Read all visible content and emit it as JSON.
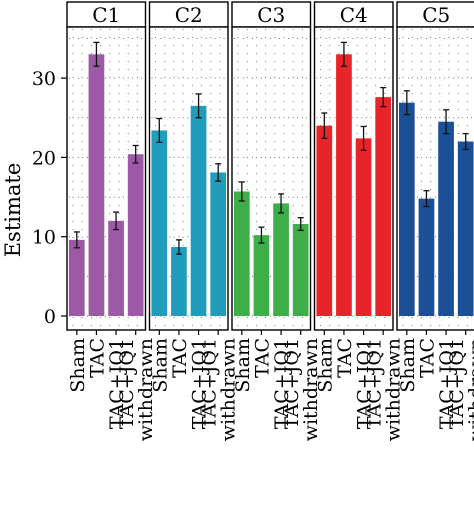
{
  "chart_data": {
    "type": "bar",
    "ylabel": "Estimate",
    "xlabel": "",
    "ylim": [
      0,
      37
    ],
    "yticks": [
      0,
      10,
      20,
      30
    ],
    "categories": [
      "Sham",
      "TAC",
      "TAC+JQ1",
      "TAC+JQ1 withdrawn"
    ],
    "tick_lines": [
      [
        "Sham"
      ],
      [
        "TAC"
      ],
      [
        "TAC+JQ1"
      ],
      [
        "TAC+JQ1",
        "withdrawn"
      ]
    ],
    "grid": true,
    "facets": [
      {
        "name": "C1",
        "color": "#9b59a6",
        "values": [
          9.6,
          33.0,
          12.0,
          20.4
        ],
        "errors": [
          1.0,
          1.5,
          1.1,
          1.1
        ]
      },
      {
        "name": "C2",
        "color": "#1f9dbb",
        "values": [
          23.4,
          8.7,
          26.5,
          18.1
        ],
        "errors": [
          1.5,
          0.9,
          1.5,
          1.1
        ]
      },
      {
        "name": "C3",
        "color": "#3dae4a",
        "values": [
          15.7,
          10.2,
          14.2,
          11.6
        ],
        "errors": [
          1.2,
          1.0,
          1.2,
          0.8
        ]
      },
      {
        "name": "C4",
        "color": "#e8242b",
        "values": [
          24.0,
          33.0,
          22.4,
          27.6
        ],
        "errors": [
          1.6,
          1.5,
          1.5,
          1.2
        ]
      },
      {
        "name": "C5",
        "color": "#1b4f96",
        "values": [
          26.9,
          14.8,
          24.5,
          22.0
        ],
        "errors": [
          1.5,
          1.0,
          1.5,
          1.0
        ]
      }
    ]
  }
}
